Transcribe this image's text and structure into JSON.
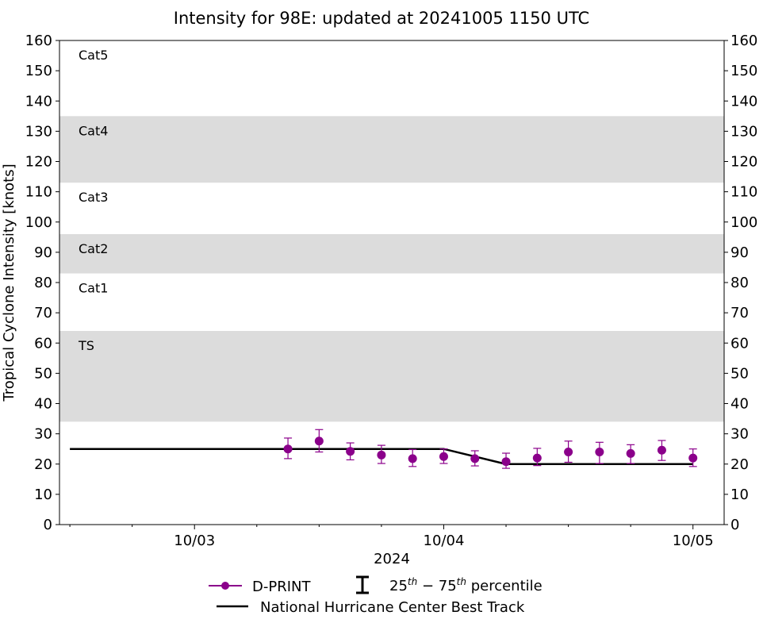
{
  "chart_data": {
    "type": "line",
    "title": "Intensity for 98E: updated at 20241005 1150 UTC",
    "ylabel": "Tropical Cyclone Intensity [knots]",
    "xlabel": "2024",
    "ylim": [
      0,
      160
    ],
    "yticks": [
      0,
      10,
      20,
      30,
      40,
      50,
      60,
      70,
      80,
      90,
      100,
      110,
      120,
      130,
      140,
      150,
      160
    ],
    "x_unit": "days",
    "xlim": [
      "2024-10-02T11:00",
      "2024-10-05T03:00"
    ],
    "xticks": [
      {
        "x": "2024-10-03T00:00",
        "label": "10/03"
      },
      {
        "x": "2024-10-04T00:00",
        "label": "10/04"
      },
      {
        "x": "2024-10-05T00:00",
        "label": "10/05"
      }
    ],
    "minor_xticks": [
      "2024-10-02T12:00",
      "2024-10-02T18:00",
      "2024-10-03T06:00",
      "2024-10-03T12:00",
      "2024-10-03T18:00",
      "2024-10-04T06:00",
      "2024-10-04T12:00",
      "2024-10-04T18:00"
    ],
    "bands": [
      {
        "y0": 34,
        "y1": 64,
        "label": "TS",
        "shaded": true
      },
      {
        "y0": 64,
        "y1": 83,
        "label": "Cat1",
        "shaded": false
      },
      {
        "y0": 83,
        "y1": 96,
        "label": "Cat2",
        "shaded": true
      },
      {
        "y0": 96,
        "y1": 113,
        "label": "Cat3",
        "shaded": false
      },
      {
        "y0": 113,
        "y1": 135,
        "label": "Cat4",
        "shaded": true
      },
      {
        "y0": 135,
        "y1": 160,
        "label": "Cat5",
        "shaded": false
      }
    ],
    "series": [
      {
        "name": "National Hurricane Center Best Track",
        "color": "#000000",
        "points": [
          {
            "x": "2024-10-02T12:00",
            "y": 25
          },
          {
            "x": "2024-10-04T00:00",
            "y": 25
          },
          {
            "x": "2024-10-04T06:00",
            "y": 20
          },
          {
            "x": "2024-10-05T00:00",
            "y": 20
          }
        ]
      },
      {
        "name": "D-PRINT",
        "color": "#8b008b",
        "points": [
          {
            "x": "2024-10-03T09:00",
            "y": 25.0,
            "p25": 21.8,
            "p75": 28.6
          },
          {
            "x": "2024-10-03T12:00",
            "y": 27.6,
            "p25": 24.0,
            "p75": 31.4
          },
          {
            "x": "2024-10-03T15:00",
            "y": 24.2,
            "p25": 21.4,
            "p75": 27.0
          },
          {
            "x": "2024-10-03T18:00",
            "y": 23.0,
            "p25": 20.2,
            "p75": 26.2
          },
          {
            "x": "2024-10-03T21:00",
            "y": 21.8,
            "p25": 19.2,
            "p75": 24.8
          },
          {
            "x": "2024-10-04T00:00",
            "y": 22.5,
            "p25": 20.2,
            "p75": 25.0
          },
          {
            "x": "2024-10-04T03:00",
            "y": 21.8,
            "p25": 19.4,
            "p75": 24.4
          },
          {
            "x": "2024-10-04T06:00",
            "y": 20.8,
            "p25": 18.6,
            "p75": 23.6
          },
          {
            "x": "2024-10-04T09:00",
            "y": 22.0,
            "p25": 19.5,
            "p75": 25.2
          },
          {
            "x": "2024-10-04T12:00",
            "y": 24.0,
            "p25": 20.6,
            "p75": 27.6
          },
          {
            "x": "2024-10-04T15:00",
            "y": 24.0,
            "p25": 20.2,
            "p75": 27.2
          },
          {
            "x": "2024-10-04T18:00",
            "y": 23.5,
            "p25": 20.2,
            "p75": 26.4
          },
          {
            "x": "2024-10-04T21:00",
            "y": 24.6,
            "p25": 21.2,
            "p75": 27.8
          },
          {
            "x": "2024-10-05T00:00",
            "y": 22.0,
            "p25": 19.2,
            "p75": 25.0
          }
        ]
      }
    ],
    "legend": {
      "placement": "bottom-center",
      "dprint_label": "D-PRINT",
      "percentile_label_sup1": "25",
      "percentile_label_th1": "th",
      "percentile_label_sup2": "75",
      "percentile_label_th2": "th",
      "percentile_label_dash": " − ",
      "percentile_label_tail": " percentile",
      "best_track_label": "National Hurricane Center Best Track"
    },
    "grid": false,
    "colors": {
      "band": "#dcdcdc",
      "dprint": "#8b008b",
      "best_track": "#000000"
    }
  }
}
